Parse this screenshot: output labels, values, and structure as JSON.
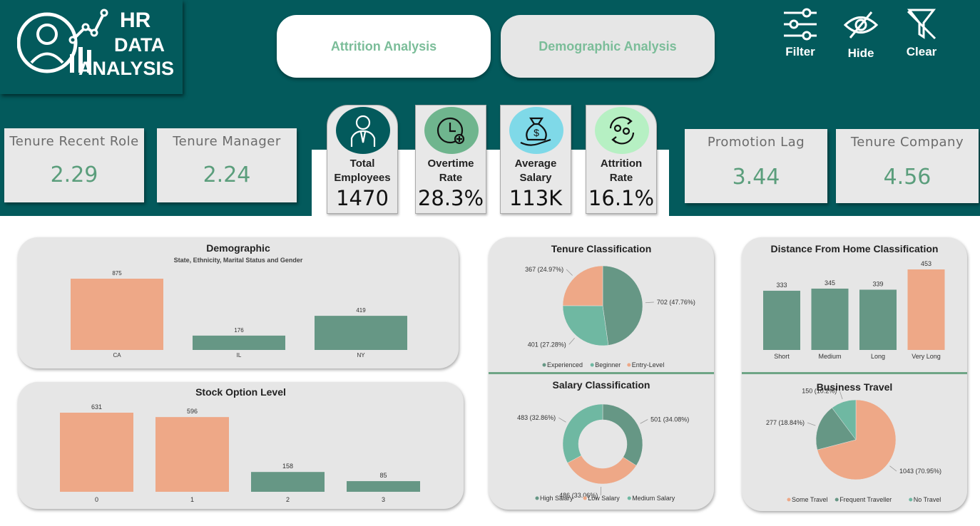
{
  "logo": {
    "line1": "HR",
    "line2": "DATA",
    "line3": "ANALYSIS"
  },
  "nav": {
    "attrition": "Attrition Analysis",
    "demographic": "Demographic Analysis"
  },
  "tools": {
    "filter": "Filter",
    "hide": "Hide",
    "clear": "Clear"
  },
  "kpis_left": [
    {
      "title": "Tenure Recent Role",
      "value": "2.29"
    },
    {
      "title": "Tenure Manager",
      "value": "2.24"
    }
  ],
  "kpis_right": [
    {
      "title": "Promotion Lag",
      "value": "3.44"
    },
    {
      "title": "Tenure Company",
      "value": "4.56"
    }
  ],
  "metrics": [
    {
      "label1": "Total",
      "label2": "Employees",
      "value": "1470",
      "icon": "employee-icon",
      "color": "#035a5c"
    },
    {
      "label1": "Overtime",
      "label2": "Rate",
      "value": "28.3%",
      "icon": "clock-icon",
      "color": "#6fb58e"
    },
    {
      "label1": "Average",
      "label2": "Salary",
      "value": "113K",
      "icon": "money-bag-icon",
      "color": "#7fd9e8"
    },
    {
      "label1": "Attrition",
      "label2": "Rate",
      "value": "16.1%",
      "icon": "attrition-icon",
      "color": "#b6f0c3"
    }
  ],
  "colors": {
    "teal": "#035a5c",
    "orange": "#eea887",
    "green": "#669785",
    "lightgreen": "#6fb8a2"
  },
  "chart_data": [
    {
      "type": "bar",
      "title": "Demographic",
      "subtitle": "State, Ethnicity, Marital Status and Gender",
      "categories": [
        "CA",
        "IL",
        "NY"
      ],
      "values": [
        875,
        176,
        419
      ],
      "colors": [
        "#eea887",
        "#669785",
        "#669785"
      ]
    },
    {
      "type": "bar",
      "title": "Stock Option Level",
      "categories": [
        "0",
        "1",
        "2",
        "3"
      ],
      "values": [
        631,
        596,
        158,
        85
      ],
      "colors": [
        "#eea887",
        "#eea887",
        "#669785",
        "#669785"
      ]
    },
    {
      "type": "pie",
      "title": "Tenure Classification",
      "labels": [
        "Experienced",
        "Beginner",
        "Entry-Level"
      ],
      "values": [
        702,
        401,
        367
      ],
      "data_labels": [
        "702 (47.76%)",
        "401 (27.28%)",
        "367 (24.97%)"
      ],
      "colors": [
        "#669785",
        "#6fb8a2",
        "#eea887"
      ],
      "legend": "bottom"
    },
    {
      "type": "pie",
      "title": "Salary Classification",
      "donut": true,
      "labels": [
        "High Salary",
        "Low Salary",
        "Medium Salary"
      ],
      "values": [
        501,
        486,
        483
      ],
      "data_labels": [
        "501 (34.08%)",
        "486 (33.06%)",
        "483 (32.86%)"
      ],
      "colors": [
        "#669785",
        "#eea887",
        "#6fb8a2"
      ],
      "legend": "bottom"
    },
    {
      "type": "bar",
      "title": "Distance From Home Classification",
      "categories": [
        "Short",
        "Medium",
        "Long",
        "Very Long"
      ],
      "values": [
        333,
        345,
        339,
        453
      ],
      "colors": [
        "#669785",
        "#669785",
        "#669785",
        "#eea887"
      ]
    },
    {
      "type": "pie",
      "title": "Business Travel",
      "labels": [
        "Some Travel",
        "Frequent Traveller",
        "No Travel"
      ],
      "values": [
        1043,
        277,
        150
      ],
      "data_labels": [
        "1043 (70.95%)",
        "277 (18.84%)",
        "150 (10.2%)"
      ],
      "colors": [
        "#eea887",
        "#669785",
        "#6fb8a2"
      ],
      "legend": "bottom"
    }
  ]
}
